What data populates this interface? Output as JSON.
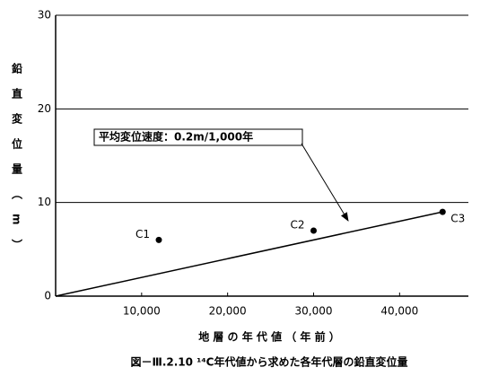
{
  "chart_data": {
    "type": "scatter",
    "caption": "図－Ⅲ.2.10 ¹⁴C年代値から求めた各年代層の鉛直変位量",
    "x_label": "地 層 の 年 代 値 （ 年 前 ）",
    "y_label": "鉛直変位量（m）",
    "annotation": "平均変位速度：0.2m/1,000年",
    "xlim": [
      0,
      48000
    ],
    "xticks": [
      {
        "value": 10000,
        "label": "10,000"
      },
      {
        "value": 20000,
        "label": "20,000"
      },
      {
        "value": 30000,
        "label": "30,000"
      },
      {
        "value": 40000,
        "label": "40,000"
      }
    ],
    "ylim": [
      0,
      30
    ],
    "yticks": [
      0,
      10,
      20,
      30
    ],
    "grid": true,
    "series": [
      {
        "type": "scatter",
        "color": "#000000",
        "labels": [
          "C1",
          "C2",
          "C3"
        ],
        "x": [
          12000,
          30000,
          45000
        ],
        "values": [
          6,
          7,
          9
        ]
      },
      {
        "type": "line",
        "color": "#000000",
        "x": [
          0,
          45000
        ],
        "values": [
          0,
          9
        ]
      }
    ]
  }
}
